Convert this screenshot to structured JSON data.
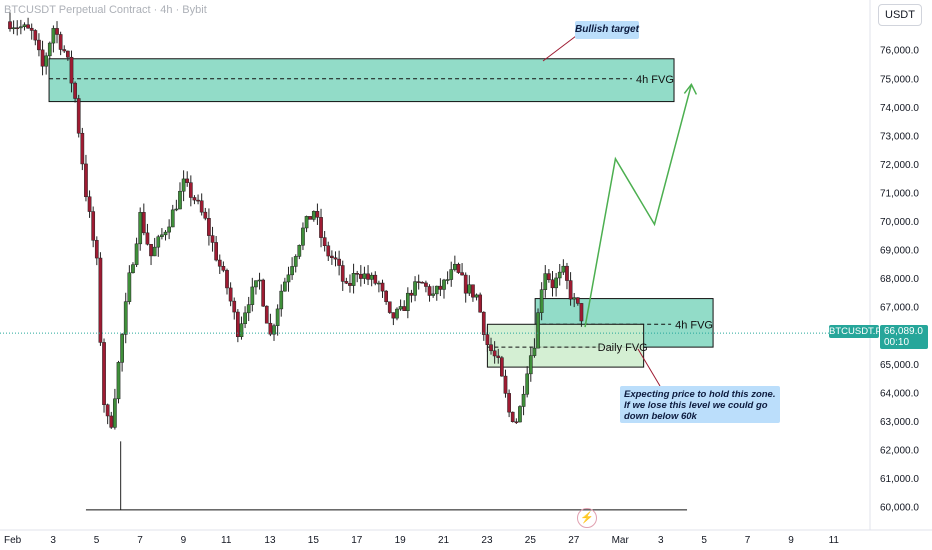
{
  "symbol_title": "BTCUSDT Perpetual Contract · 4h · Bybit",
  "currency_button": "USDT",
  "price_tag": {
    "symbol": "BTCUSDT.P",
    "price": "66,089.0",
    "countdown": "00:10"
  },
  "colors": {
    "up": "#26a69a",
    "down": "#ef5350",
    "candle_up": "#3f8f3a",
    "candle_down": "#9e1b32",
    "zone_fill": "#7fd6be",
    "zone_fill_light": "#cdeccb",
    "projection": "#4caf50",
    "note_bg": "#bbdefb",
    "last_price": "#26a69a"
  },
  "chart_data": {
    "type": "candlestick",
    "title": "BTCUSDT Perpetual Contract · 4h · Bybit",
    "ylim": [
      59500,
      77300
    ],
    "y_ticks": [
      60000,
      61000,
      62000,
      63000,
      64000,
      65000,
      66000,
      67000,
      68000,
      69000,
      70000,
      71000,
      72000,
      73000,
      74000,
      75000,
      76000
    ],
    "y_tick_labels": [
      "60,000.0",
      "61,000.0",
      "62,000.0",
      "63,000.0",
      "64,000.0",
      "65,000.0",
      "66,000.0",
      "67,000.0",
      "68,000.0",
      "69,000.0",
      "70,000.0",
      "71,000.0",
      "72,000.0",
      "73,000.0",
      "74,000.0",
      "75,000.0",
      "76,000.0"
    ],
    "x_ticks": [
      {
        "label": "Feb",
        "day": 0
      },
      {
        "label": "3",
        "day": 2
      },
      {
        "label": "5",
        "day": 4
      },
      {
        "label": "7",
        "day": 6
      },
      {
        "label": "9",
        "day": 8
      },
      {
        "label": "11",
        "day": 10
      },
      {
        "label": "13",
        "day": 12
      },
      {
        "label": "15",
        "day": 14
      },
      {
        "label": "17",
        "day": 16
      },
      {
        "label": "19",
        "day": 18
      },
      {
        "label": "21",
        "day": 20
      },
      {
        "label": "23",
        "day": 22
      },
      {
        "label": "25",
        "day": 24
      },
      {
        "label": "27",
        "day": 26
      },
      {
        "label": "Mar",
        "day": 28
      },
      {
        "label": "3",
        "day": 30
      },
      {
        "label": "5",
        "day": 32
      },
      {
        "label": "7",
        "day": 34
      },
      {
        "label": "9",
        "day": 36
      },
      {
        "label": "11",
        "day": 38
      }
    ],
    "price_path": [
      [
        0,
        77000
      ],
      [
        1,
        76600
      ],
      [
        1.5,
        75400
      ],
      [
        2,
        76800
      ],
      [
        2.6,
        75800
      ],
      [
        3,
        74300
      ],
      [
        3.5,
        71000
      ],
      [
        4,
        68500
      ],
      [
        4.3,
        63800
      ],
      [
        4.6,
        62600
      ],
      [
        5,
        65000
      ],
      [
        5.5,
        68000
      ],
      [
        6,
        70200
      ],
      [
        6.5,
        68800
      ],
      [
        7,
        69500
      ],
      [
        7.5,
        70300
      ],
      [
        8,
        71300
      ],
      [
        8.5,
        70800
      ],
      [
        9,
        70000
      ],
      [
        9.5,
        68800
      ],
      [
        10,
        67700
      ],
      [
        10.5,
        66200
      ],
      [
        11,
        67300
      ],
      [
        11.5,
        67900
      ],
      [
        12,
        66000
      ],
      [
        12.5,
        67600
      ],
      [
        13,
        68600
      ],
      [
        13.5,
        69700
      ],
      [
        14,
        70400
      ],
      [
        14.5,
        69000
      ],
      [
        15,
        68600
      ],
      [
        15.5,
        67600
      ],
      [
        16,
        68300
      ],
      [
        16.5,
        68000
      ],
      [
        17,
        67800
      ],
      [
        17.5,
        66600
      ],
      [
        18,
        66800
      ],
      [
        18.5,
        67600
      ],
      [
        19,
        67800
      ],
      [
        19.5,
        67400
      ],
      [
        20,
        67800
      ],
      [
        20.5,
        68300
      ],
      [
        21,
        67700
      ],
      [
        21.5,
        67400
      ],
      [
        22,
        65700
      ],
      [
        22.5,
        65000
      ],
      [
        23,
        63300
      ],
      [
        23.4,
        63000
      ],
      [
        23.8,
        64800
      ],
      [
        24.2,
        65900
      ],
      [
        24.6,
        68400
      ],
      [
        25,
        67800
      ],
      [
        25.5,
        68200
      ],
      [
        25.9,
        67300
      ],
      [
        26.3,
        66800
      ],
      [
        26.5,
        66000
      ]
    ],
    "zones": [
      {
        "label": "4h FVG",
        "top": 75700,
        "bottom": 74200,
        "mid": 75000,
        "from_day": 1.8,
        "to_day": 30.6
      },
      {
        "label": "4h FVG",
        "top": 67300,
        "bottom": 65600,
        "mid": 66400,
        "from_day": 24.2,
        "to_day": 32.4
      },
      {
        "label": "Daily FVG",
        "top": 66400,
        "bottom": 64900,
        "mid": 65600,
        "from_day": 22,
        "to_day": 29.2
      }
    ],
    "support_level": 59900,
    "last_price": 66089,
    "projection": [
      [
        26.5,
        66300
      ],
      [
        27.9,
        72200
      ],
      [
        29.7,
        69900
      ],
      [
        31.4,
        74800
      ]
    ],
    "annotations": [
      {
        "text": "Bullish target",
        "target_day": 24.3,
        "target_price": 75700
      },
      {
        "text": "Expecting price to hold this zone.\nIf we lose this level we could go down below 60k",
        "target_day": 28.4,
        "target_price": 65500
      }
    ]
  }
}
